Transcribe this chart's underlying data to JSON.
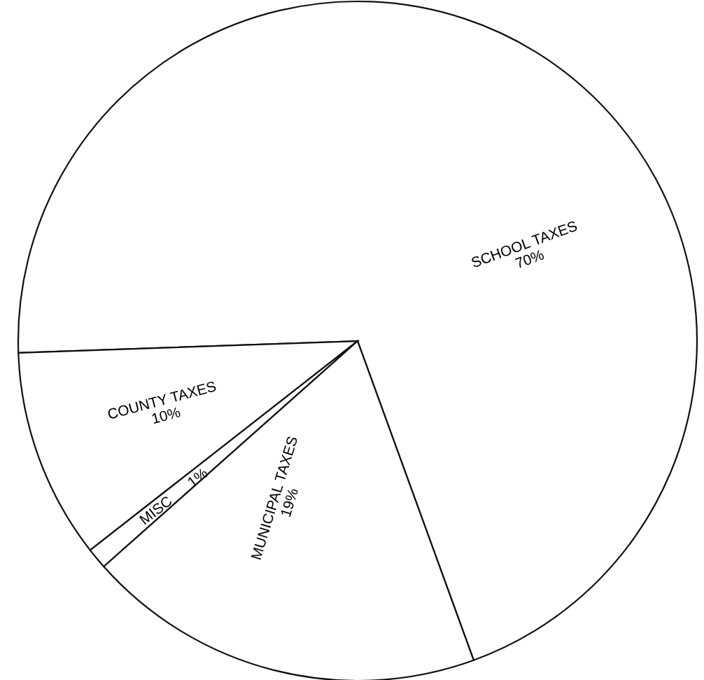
{
  "chart_data": {
    "type": "pie",
    "categories": [
      "SCHOOL TAXES",
      "COUNTY TAXES",
      "MISC",
      "MUNICIPAL TAXES"
    ],
    "values": [
      70,
      10,
      1,
      19
    ],
    "value_labels": [
      "70%",
      "10%",
      "1%",
      "19%"
    ],
    "colors": [
      "#ffffff",
      "#ffffff",
      "#ffffff",
      "#ffffff"
    ],
    "legend": false
  }
}
